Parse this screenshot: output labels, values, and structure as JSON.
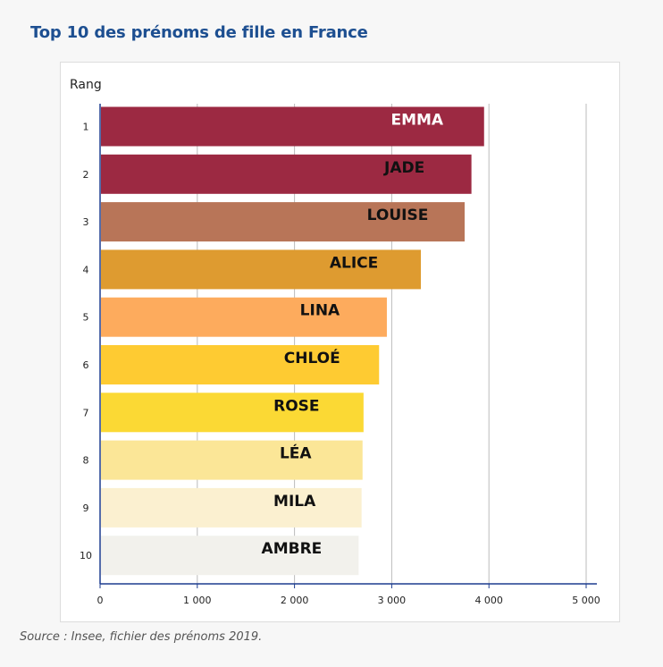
{
  "title": "Top 10 des prénoms de fille en France",
  "source": "Source : Insee, fichier des prénoms 2019.",
  "chart_data": {
    "type": "bar",
    "orientation": "horizontal",
    "title": "Top 10 des prénoms de fille en France",
    "ylabel": "Rang",
    "xlabel": "",
    "categories": [
      "1",
      "2",
      "3",
      "4",
      "5",
      "6",
      "7",
      "8",
      "9",
      "10"
    ],
    "names": [
      "EMMA",
      "JADE",
      "LOUISE",
      "ALICE",
      "LINA",
      "CHLOÉ",
      "ROSE",
      "LÉA",
      "MILA",
      "AMBRE"
    ],
    "values": [
      3950,
      3820,
      3750,
      3300,
      2950,
      2870,
      2710,
      2700,
      2690,
      2660
    ],
    "xlim": [
      0,
      5000
    ],
    "xticks": [
      0,
      1000,
      2000,
      3000,
      4000,
      5000
    ],
    "xtick_labels": [
      "0",
      "1 000",
      "2 000",
      "3 000",
      "4 000",
      "5 000"
    ],
    "grid": "vertical",
    "colors": [
      "#9c2942",
      "#9c2942",
      "#b87558",
      "#de9b30",
      "#fdab5d",
      "#fecb32",
      "#fbd934",
      "#fbe697",
      "#fbf0d0",
      "#f2f1ec"
    ],
    "label_colors": [
      "#ffffff",
      "#111111",
      "#111111",
      "#111111",
      "#111111",
      "#111111",
      "#111111",
      "#111111",
      "#111111",
      "#111111"
    ],
    "axis_color": "#1d3d8f"
  }
}
